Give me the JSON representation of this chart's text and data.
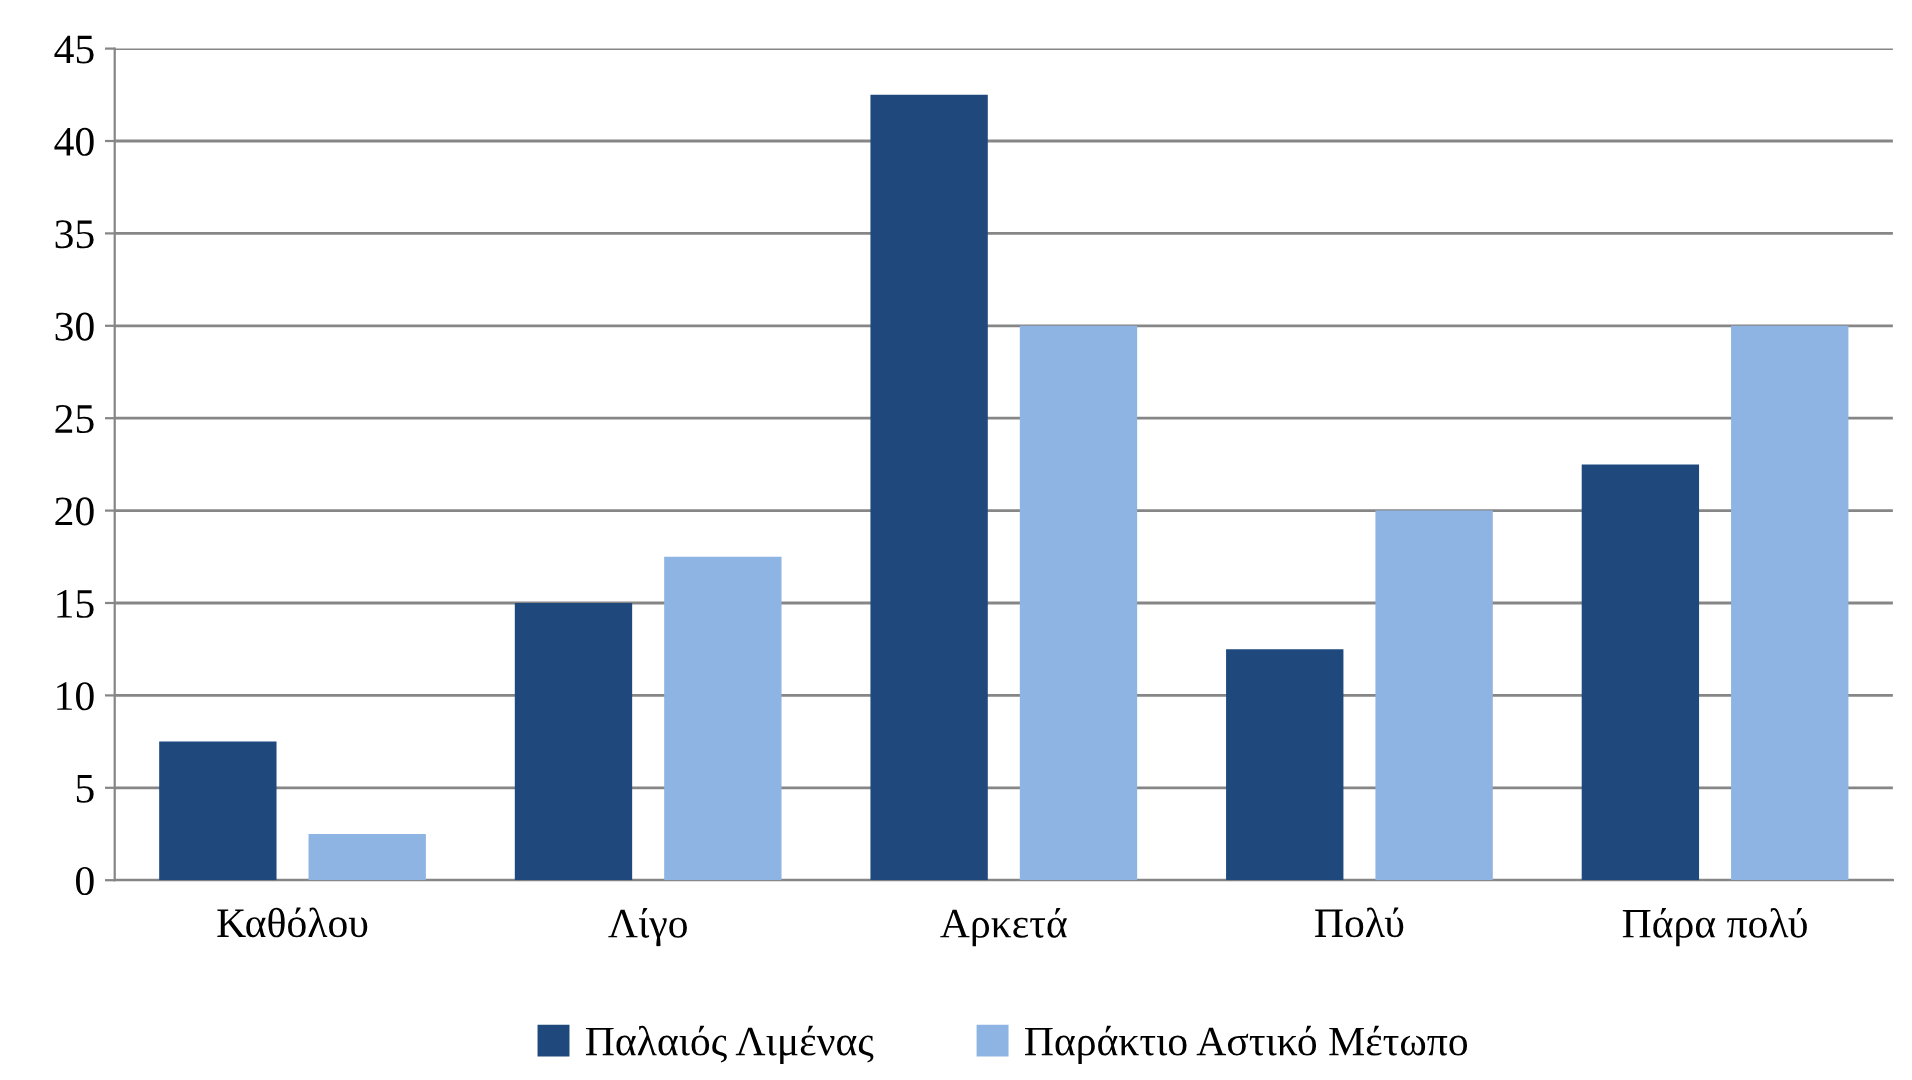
{
  "chart_data": {
    "type": "bar",
    "categories": [
      "Καθόλου",
      "Λίγο",
      "Αρκετά",
      "Πολύ",
      "Πάρα πολύ"
    ],
    "series": [
      {
        "name": "Παλαιός Λιμένας",
        "color": "#1f497d",
        "values": [
          7.5,
          15,
          42.5,
          12.5,
          22.5
        ]
      },
      {
        "name": "Παράκτιο Αστικό Μέτωπο",
        "color": "#8eb4e3",
        "values": [
          2.5,
          17.5,
          30,
          20,
          30
        ]
      }
    ],
    "ylim": [
      0,
      45
    ],
    "yticks": [
      0,
      5,
      10,
      15,
      20,
      25,
      30,
      35,
      40,
      45
    ],
    "grid": "y",
    "legend": "bottom"
  }
}
